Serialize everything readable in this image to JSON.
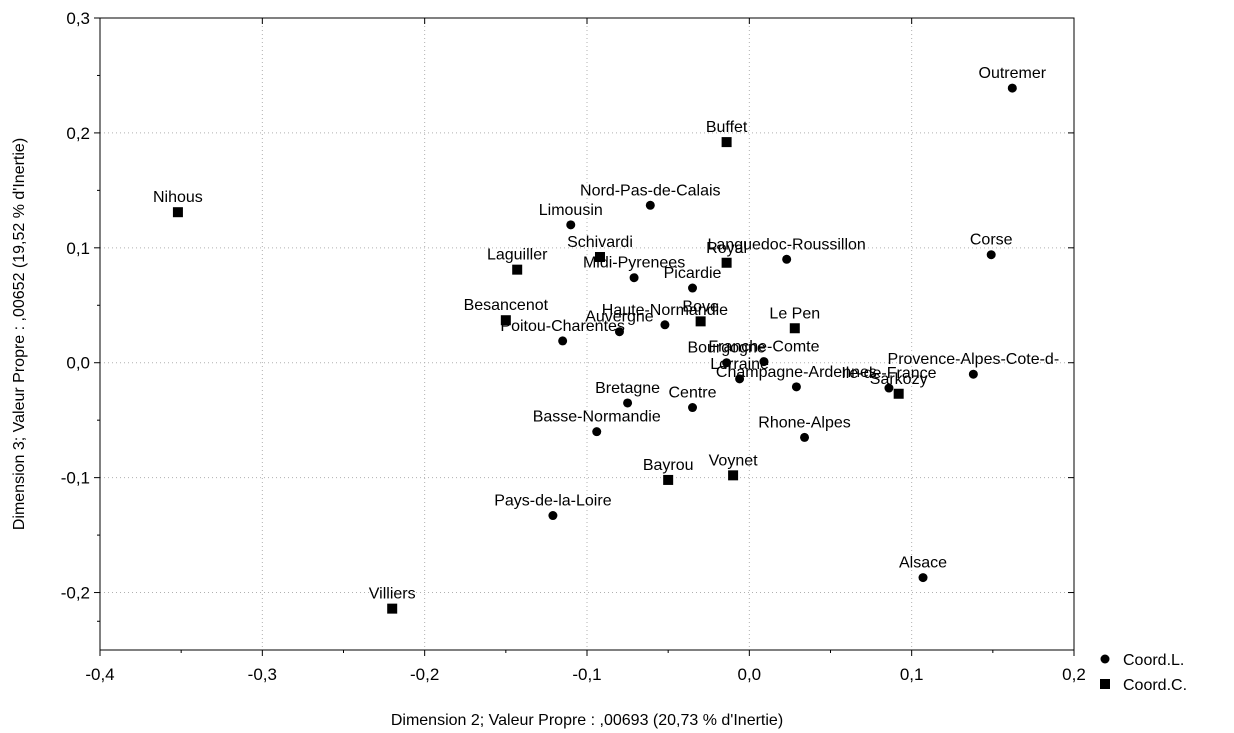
{
  "chart_data": {
    "type": "scatter",
    "title": "",
    "xlabel": "Dimension 2; Valeur Propre : ,00693 (20,73  % d'Inertie)",
    "ylabel": "Dimension 3; Valeur Propre : ,00652 (19,52  % d'Inertie)",
    "xlim": [
      -0.4,
      0.2
    ],
    "ylim": [
      -0.25,
      0.3
    ],
    "x_ticks": [
      -0.4,
      -0.3,
      -0.2,
      -0.1,
      0.0,
      0.1,
      0.2
    ],
    "x_tick_labels": [
      "-0,4",
      "-0,3",
      "-0,2",
      "-0,1",
      "0,0",
      "0,1",
      "0,2"
    ],
    "y_ticks": [
      -0.2,
      -0.1,
      0.0,
      0.1,
      0.2,
      0.3
    ],
    "y_tick_labels": [
      "-0,2",
      "-0,1",
      "0,0",
      "0,1",
      "0,2",
      "0,3"
    ],
    "grid": true,
    "legend_position": "bottom-right",
    "series": [
      {
        "name": "Coord.L.",
        "marker": "circle",
        "color": "#000000",
        "points": [
          {
            "label": "Outremer",
            "x": 0.162,
            "y": 0.239
          },
          {
            "label": "Nord-Pas-de-Calais",
            "x": -0.061,
            "y": 0.137
          },
          {
            "label": "Limousin",
            "x": -0.11,
            "y": 0.12
          },
          {
            "label": "Corse",
            "x": 0.149,
            "y": 0.094
          },
          {
            "label": "Languedoc-Roussillon",
            "x": 0.023,
            "y": 0.09
          },
          {
            "label": "Midi-Pyrenees",
            "x": -0.071,
            "y": 0.074
          },
          {
            "label": "Picardie",
            "x": -0.035,
            "y": 0.065
          },
          {
            "label": "Haute-Normandie",
            "x": -0.052,
            "y": 0.033
          },
          {
            "label": "Auvergne",
            "x": -0.08,
            "y": 0.027
          },
          {
            "label": "Poitou-Charentes",
            "x": -0.115,
            "y": 0.019
          },
          {
            "label": "Franche-Comte",
            "x": 0.009,
            "y": 0.001
          },
          {
            "label": "Bourgogne",
            "x": -0.014,
            "y": 0.0
          },
          {
            "label": "Lorraine",
            "x": -0.006,
            "y": -0.014
          },
          {
            "label": "Provence-Alpes-Cote-d-",
            "x": 0.138,
            "y": -0.01
          },
          {
            "label": "Champagne-Ardennes",
            "x": 0.029,
            "y": -0.021
          },
          {
            "label": "Ile-de-France",
            "x": 0.086,
            "y": -0.022
          },
          {
            "label": "Bretagne",
            "x": -0.075,
            "y": -0.035
          },
          {
            "label": "Centre",
            "x": -0.035,
            "y": -0.039
          },
          {
            "label": "Basse-Normandie",
            "x": -0.094,
            "y": -0.06
          },
          {
            "label": "Rhone-Alpes",
            "x": 0.034,
            "y": -0.065
          },
          {
            "label": "Pays-de-la-Loire",
            "x": -0.121,
            "y": -0.133
          },
          {
            "label": "Alsace",
            "x": 0.107,
            "y": -0.187
          }
        ]
      },
      {
        "name": "Coord.C.",
        "marker": "square",
        "color": "#000000",
        "points": [
          {
            "label": "Buffet",
            "x": -0.014,
            "y": 0.192
          },
          {
            "label": "Nihous",
            "x": -0.352,
            "y": 0.131
          },
          {
            "label": "Schivardi",
            "x": -0.092,
            "y": 0.092
          },
          {
            "label": "Royal",
            "x": -0.014,
            "y": 0.087
          },
          {
            "label": "Laguiller",
            "x": -0.143,
            "y": 0.081
          },
          {
            "label": "Besancenot",
            "x": -0.15,
            "y": 0.037
          },
          {
            "label": "Bove",
            "x": -0.03,
            "y": 0.036
          },
          {
            "label": "Le Pen",
            "x": 0.028,
            "y": 0.03
          },
          {
            "label": "Sarkozy",
            "x": 0.092,
            "y": -0.027
          },
          {
            "label": "Voynet",
            "x": -0.01,
            "y": -0.098
          },
          {
            "label": "Bayrou",
            "x": -0.05,
            "y": -0.102
          },
          {
            "label": "Villiers",
            "x": -0.22,
            "y": -0.214
          }
        ]
      }
    ]
  }
}
